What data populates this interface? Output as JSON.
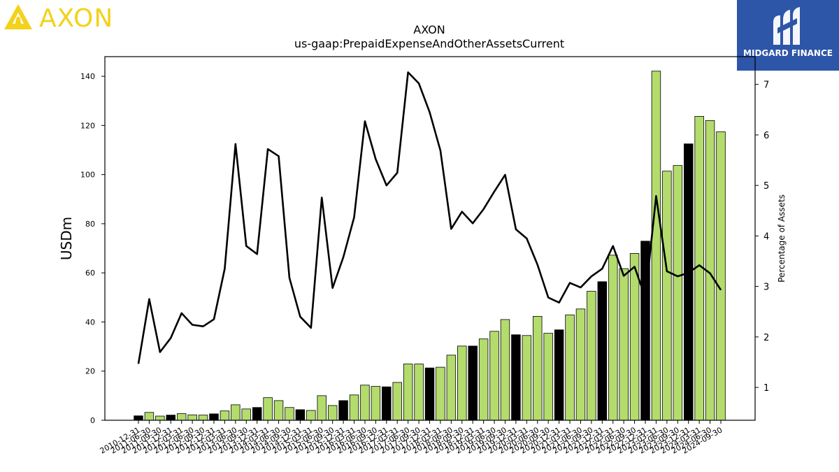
{
  "logos": {
    "left": {
      "text": "AXON",
      "color": "#f2d21b"
    },
    "right": {
      "text": "MIDGARD FINANCE",
      "bg": "#2d55a8"
    }
  },
  "chart_data": {
    "type": "bar",
    "title": "AXON",
    "subtitle": "us-gaap:PrepaidExpenseAndOtherAssetsCurrent",
    "ylabel": "USDm",
    "y2label": "Percentage of Assets",
    "ylim": [
      0,
      148
    ],
    "y2lim": [
      0.35,
      7.55
    ],
    "yticks": [
      0,
      20,
      40,
      60,
      80,
      100,
      120,
      140
    ],
    "y2ticks": [
      1,
      2,
      3,
      4,
      5,
      6,
      7
    ],
    "categories": [
      "2010-12-31",
      "2011-06-30",
      "2011-09-30",
      "2011-12-31",
      "2012-03-31",
      "2012-06-30",
      "2012-09-30",
      "2012-12-31",
      "2013-03-31",
      "2013-06-30",
      "2013-09-30",
      "2013-12-31",
      "2014-03-31",
      "2014-06-30",
      "2014-09-30",
      "2014-12-31",
      "2015-03-31",
      "2015-06-30",
      "2015-09-30",
      "2015-12-31",
      "2016-03-31",
      "2016-06-30",
      "2016-09-30",
      "2016-12-31",
      "2017-03-31",
      "2017-06-30",
      "2017-09-30",
      "2017-12-31",
      "2018-03-31",
      "2018-06-30",
      "2018-09-30",
      "2018-12-31",
      "2019-03-31",
      "2019-06-30",
      "2019-09-30",
      "2019-12-31",
      "2020-03-31",
      "2020-06-30",
      "2020-09-30",
      "2020-12-31",
      "2021-03-31",
      "2021-06-30",
      "2021-09-30",
      "2021-12-31",
      "2022-03-31",
      "2022-06-30",
      "2022-09-30",
      "2022-12-31",
      "2023-03-31",
      "2023-06-30",
      "2023-09-30",
      "2023-12-31",
      "2024-03-31",
      "2024-06-30",
      "2024-09-30"
    ],
    "series": [
      {
        "kind": "bar",
        "values": [
          1.8,
          3.2,
          1.7,
          2.1,
          2.7,
          2.2,
          2.1,
          2.6,
          3.8,
          6.3,
          4.6,
          5.2,
          9.2,
          8.0,
          5.2,
          4.3,
          4.0,
          10.0,
          6.0,
          8.0,
          10.3,
          14.3,
          13.8,
          13.6,
          15.4,
          22.9,
          22.9,
          21.3,
          21.6,
          26.5,
          30.2,
          30.2,
          33.1,
          36.2,
          41.0,
          34.8,
          34.5,
          42.3,
          35.4,
          36.8,
          42.9,
          45.3,
          52.5,
          56.4,
          67.2,
          61.7,
          67.9,
          72.9,
          142.1,
          101.4,
          103.7,
          112.5,
          123.7,
          122.0,
          117.4
        ],
        "highlight": [
          true,
          false,
          false,
          true,
          false,
          false,
          false,
          true,
          false,
          false,
          false,
          true,
          false,
          false,
          false,
          true,
          false,
          false,
          false,
          true,
          false,
          false,
          false,
          true,
          false,
          false,
          false,
          true,
          false,
          false,
          false,
          true,
          false,
          false,
          false,
          true,
          false,
          false,
          false,
          true,
          false,
          false,
          false,
          true,
          false,
          false,
          false,
          true,
          false,
          false,
          false,
          true,
          false,
          false,
          false
        ],
        "color": "#b3dc6c",
        "highlight_color": "#000000"
      },
      {
        "kind": "line",
        "axis": "right",
        "values": [
          1.47,
          2.75,
          1.7,
          1.98,
          2.47,
          2.24,
          2.21,
          2.35,
          3.35,
          5.82,
          3.8,
          3.64,
          5.72,
          5.58,
          3.17,
          2.4,
          2.18,
          4.76,
          2.97,
          3.58,
          4.37,
          6.27,
          5.52,
          5.0,
          5.25,
          7.24,
          7.02,
          6.45,
          5.69,
          4.14,
          4.48,
          4.25,
          4.53,
          4.88,
          5.21,
          4.13,
          3.95,
          3.43,
          2.78,
          2.68,
          3.07,
          2.98,
          3.2,
          3.35,
          3.8,
          3.21,
          3.39,
          2.78,
          4.79,
          3.3,
          3.2,
          3.27,
          3.42,
          3.26,
          2.93
        ],
        "color": "#000000"
      }
    ]
  }
}
